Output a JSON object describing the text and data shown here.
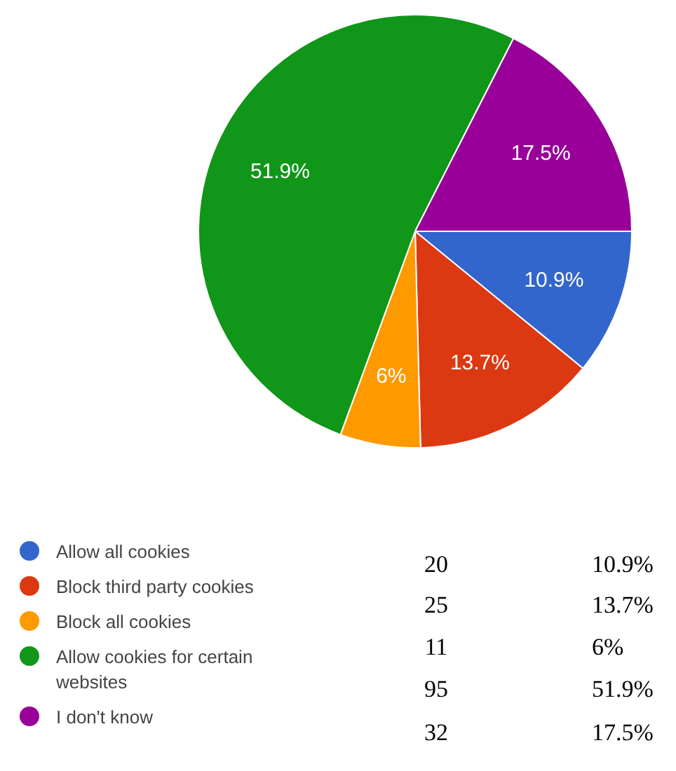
{
  "chart_data": {
    "type": "pie",
    "categories": [
      "Allow all cookies",
      "Block third party cookies",
      "Block all cookies",
      "Allow cookies for certain websites",
      "I don't know"
    ],
    "values": [
      10.9,
      13.7,
      6,
      51.9,
      17.5
    ],
    "value_labels": [
      "10.9%",
      "13.7%",
      "6%",
      "51.9%",
      "17.5%"
    ],
    "colors": [
      "#3366cc",
      "#dc3912",
      "#ff9900",
      "#109618",
      "#990099"
    ],
    "annotations": [
      "20",
      "25",
      "11",
      "95",
      "32"
    ],
    "legend": "bottom left"
  }
}
